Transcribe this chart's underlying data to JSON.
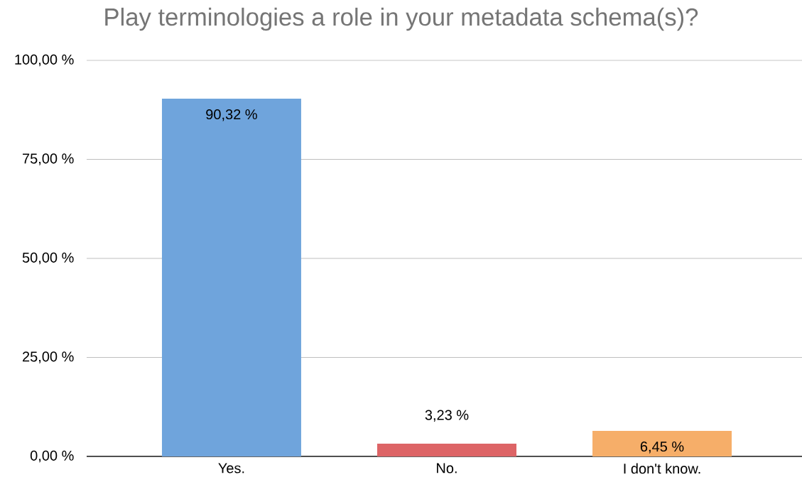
{
  "chart_data": {
    "type": "bar",
    "title": "Play terminologies a role in your metadata schema(s)?",
    "categories": [
      "Yes.",
      "No.",
      "I don't know."
    ],
    "values": [
      90.32,
      3.23,
      6.45
    ],
    "colors": [
      "#6fa4dc",
      "#dd6466",
      "#f6ae69"
    ],
    "value_labels": [
      "90,32 %",
      "3,23 %",
      "6,45 %"
    ],
    "ylim": [
      0,
      100
    ],
    "yticks": [
      {
        "value": 0,
        "label": "0,00 %"
      },
      {
        "value": 25,
        "label": "25,00 %"
      },
      {
        "value": 50,
        "label": "50,00 %"
      },
      {
        "value": 75,
        "label": "75,00 %"
      },
      {
        "value": 100,
        "label": "100,00 %"
      }
    ],
    "grid": "y"
  }
}
